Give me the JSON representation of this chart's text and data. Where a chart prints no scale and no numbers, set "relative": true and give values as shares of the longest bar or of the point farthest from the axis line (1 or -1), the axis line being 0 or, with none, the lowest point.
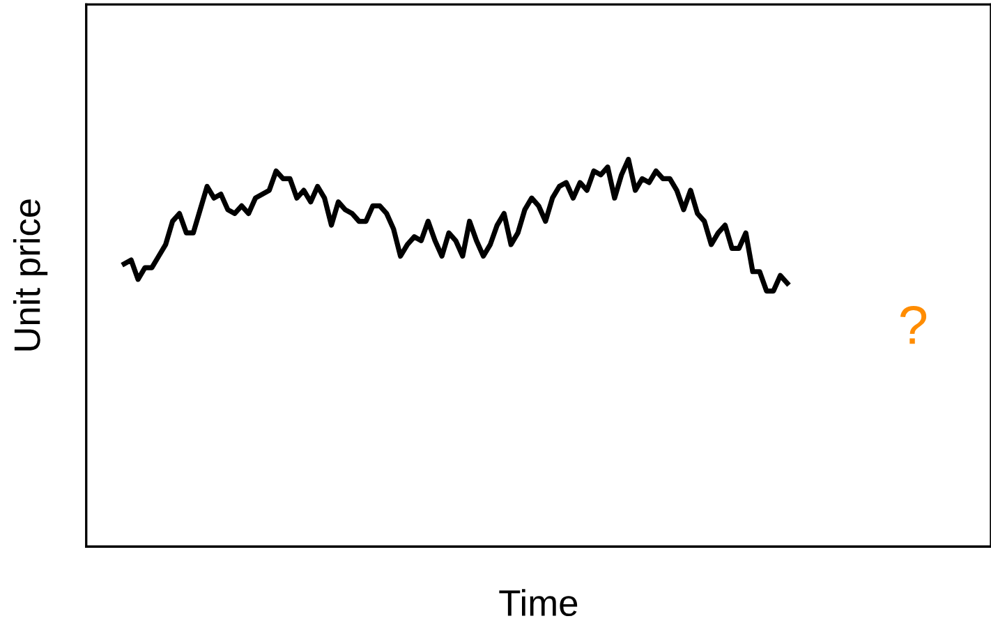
{
  "chart_data": {
    "type": "line",
    "relative": true,
    "xlabel": "Time",
    "ylabel": "Unit price",
    "annotations": [
      "?"
    ],
    "categories": [
      null,
      null,
      null,
      null,
      null,
      null,
      null,
      null,
      null,
      null,
      null,
      null,
      null,
      null,
      null,
      null,
      null,
      null,
      null,
      null,
      null,
      null,
      null,
      null,
      null,
      null,
      null,
      null,
      null,
      null,
      null,
      null,
      null,
      null,
      null,
      null,
      null,
      null,
      null,
      null,
      null,
      null,
      null,
      null,
      null,
      null,
      null,
      null,
      null,
      null,
      null,
      null,
      null,
      null,
      null,
      null,
      null,
      null,
      null,
      null,
      null,
      null,
      null,
      null,
      null,
      null,
      null,
      null,
      null,
      null,
      null,
      null,
      null,
      null,
      null,
      null,
      null,
      null,
      null,
      null,
      null,
      null,
      null,
      null,
      null,
      null,
      null,
      null,
      null,
      null,
      null,
      null,
      null,
      null,
      null,
      null,
      null,
      null,
      null,
      null,
      null,
      null,
      null,
      null,
      null,
      null,
      null,
      null,
      null,
      null,
      null,
      null,
      null,
      null,
      null,
      null,
      null,
      null,
      null,
      null,
      null,
      null,
      null,
      null,
      null,
      null,
      null,
      null,
      null,
      null,
      null
    ],
    "series": [
      {
        "color": "#000000",
        "values": [
          null,
          null,
          null,
          null,
          null,
          0.73,
          0.74,
          0.69,
          0.72,
          0.72,
          0.75,
          0.78,
          0.84,
          0.86,
          0.81,
          0.81,
          0.87,
          0.93,
          0.9,
          0.91,
          0.87,
          0.86,
          0.88,
          0.86,
          0.9,
          0.91,
          0.92,
          0.97,
          0.95,
          0.95,
          0.9,
          0.92,
          0.89,
          0.93,
          0.9,
          0.83,
          0.89,
          0.87,
          0.86,
          0.84,
          0.84,
          0.88,
          0.88,
          0.86,
          0.82,
          0.75,
          0.78,
          0.8,
          0.79,
          0.84,
          0.79,
          0.75,
          0.81,
          0.79,
          0.75,
          0.84,
          0.79,
          0.75,
          0.78,
          0.83,
          0.86,
          0.78,
          0.81,
          0.87,
          0.9,
          0.88,
          0.84,
          0.9,
          0.93,
          0.94,
          0.9,
          0.94,
          0.92,
          0.97,
          0.96,
          0.98,
          0.9,
          0.96,
          1,
          0.92,
          0.95,
          0.94,
          0.97,
          0.95,
          0.95,
          0.92,
          0.87,
          0.92,
          0.86,
          0.84,
          0.78,
          0.81,
          0.83,
          0.77,
          0.77,
          0.81,
          0.71,
          0.71,
          0.66,
          0.66,
          0.7,
          0.68,
          null,
          null,
          null,
          null,
          null,
          null,
          null,
          null,
          null,
          null,
          null,
          null,
          null,
          null,
          null,
          null,
          null,
          null,
          null,
          null,
          null,
          null,
          null,
          null,
          null,
          null,
          null,
          null,
          null
        ]
      }
    ],
    "marker": "none",
    "line_style": "solid"
  }
}
